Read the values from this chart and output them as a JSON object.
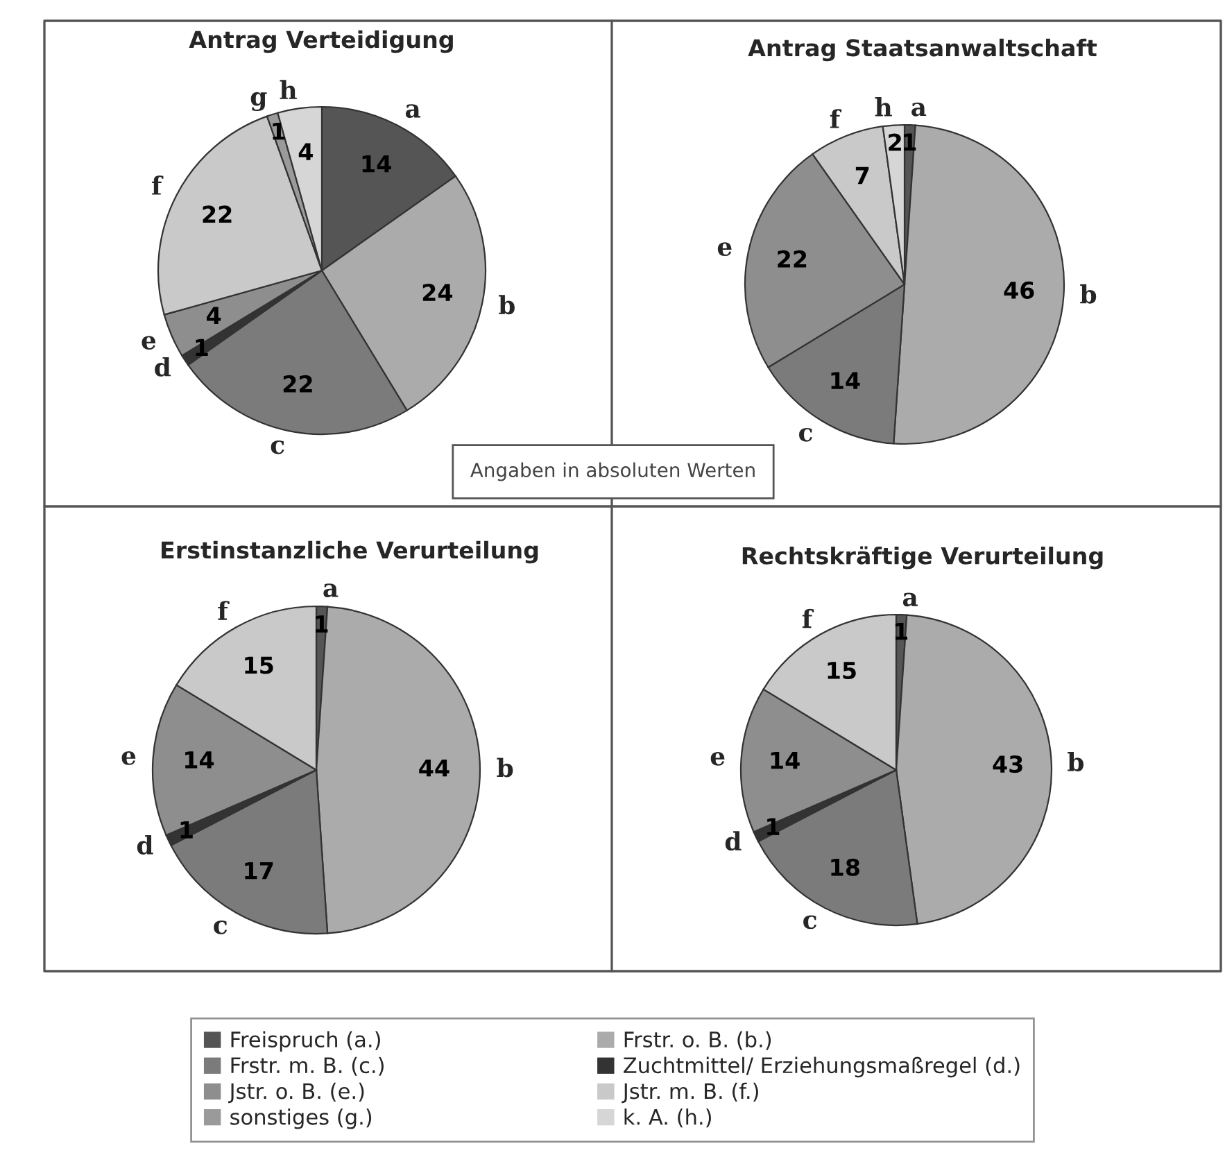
{
  "chart_data": [
    {
      "type": "pie",
      "title": "Antrag Verteidigung",
      "categories": [
        "a",
        "b",
        "c",
        "d",
        "e",
        "f",
        "g",
        "h"
      ],
      "values": [
        14,
        24,
        22,
        1,
        4,
        22,
        1,
        4
      ],
      "colors": [
        "#555555",
        "#ababab",
        "#7b7b7b",
        "#333333",
        "#8e8e8e",
        "#c9c9c9",
        "#9a9a9a",
        "#d6d6d6"
      ],
      "data_labels": true
    },
    {
      "type": "pie",
      "title": "Antrag Staatsanwaltschaft",
      "categories": [
        "a",
        "b",
        "c",
        "e",
        "f",
        "h"
      ],
      "values": [
        1,
        46,
        14,
        22,
        7,
        2
      ],
      "colors": [
        "#555555",
        "#ababab",
        "#7b7b7b",
        "#8e8e8e",
        "#c9c9c9",
        "#d6d6d6"
      ],
      "data_labels": true
    },
    {
      "type": "pie",
      "title": "Erstinstanzliche Verurteilung",
      "categories": [
        "a",
        "b",
        "c",
        "d",
        "e",
        "f"
      ],
      "values": [
        1,
        44,
        17,
        1,
        14,
        15
      ],
      "colors": [
        "#555555",
        "#ababab",
        "#7b7b7b",
        "#333333",
        "#8e8e8e",
        "#c9c9c9"
      ],
      "data_labels": true
    },
    {
      "type": "pie",
      "title": "Rechtskräftige Verurteilung",
      "categories": [
        "a",
        "b",
        "c",
        "d",
        "e",
        "f"
      ],
      "values": [
        1,
        43,
        18,
        1,
        14,
        15
      ],
      "colors": [
        "#555555",
        "#ababab",
        "#7b7b7b",
        "#333333",
        "#8e8e8e",
        "#c9c9c9"
      ],
      "data_labels": true
    },
    {
      "type": "other",
      "annotations": [
        "Angaben in absoluten Werten"
      ],
      "categories": [
        "Freispruch (a.)",
        "Frstr. o. B. (b.)",
        "Frstr. m. B. (c.)",
        "Zuchtmittel/ Erziehungsmaßregel (d.)",
        "Jstr. o. B. (e.)",
        "Jstr. m. B. (f.)",
        "sonstiges (g.)",
        "k. A. (h.)"
      ],
      "colors": [
        "#555555",
        "#ababab",
        "#7b7b7b",
        "#333333",
        "#8e8e8e",
        "#c9c9c9",
        "#9a9a9a",
        "#d6d6d6"
      ]
    }
  ]
}
